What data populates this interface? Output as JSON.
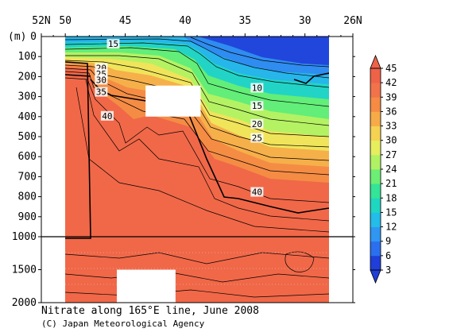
{
  "chart_data": {
    "type": "heatmap",
    "title": "Nitrate along 165°E line, June 2008",
    "credit": "(C) Japan Meteorological Agency",
    "ylabel": "(m)",
    "x_axis": {
      "range": [
        52,
        26
      ],
      "ticks": [
        "52N",
        "50",
        "45",
        "40",
        "35",
        "30",
        "26N"
      ],
      "tick_values": [
        52,
        50,
        45,
        40,
        35,
        30,
        26
      ]
    },
    "y_axis_upper": {
      "range": [
        0,
        1000
      ],
      "ticks": [
        "0",
        "100",
        "200",
        "300",
        "400",
        "500",
        "600",
        "700",
        "800",
        "900",
        "1000"
      ],
      "tick_values": [
        0,
        100,
        200,
        300,
        400,
        500,
        600,
        700,
        800,
        900,
        1000
      ]
    },
    "y_axis_lower": {
      "range": [
        1000,
        2000
      ],
      "ticks": [
        "1500",
        "2000"
      ],
      "tick_values": [
        1500,
        2000
      ]
    },
    "colorbar": {
      "ticks": [
        "3",
        "6",
        "9",
        "12",
        "15",
        "18",
        "21",
        "24",
        "27",
        "30",
        "33",
        "36",
        "39",
        "42",
        "45"
      ],
      "tick_values": [
        3,
        6,
        9,
        12,
        15,
        18,
        21,
        24,
        27,
        30,
        33,
        36,
        39,
        42,
        45
      ],
      "colors": [
        "#1f3fd8",
        "#2b6fee",
        "#2f96f2",
        "#24bce9",
        "#1fd6c0",
        "#34e497",
        "#6cef74",
        "#b0f263",
        "#e6ee5e",
        "#f5d252",
        "#f7ab48",
        "#f58b44",
        "#f2734a",
        "#ee6248"
      ]
    },
    "contour_labels": [
      {
        "text": "15",
        "lat": 46.0,
        "depth": 40
      },
      {
        "text": "20",
        "lat": 47.0,
        "depth": 160
      },
      {
        "text": "25",
        "lat": 47.0,
        "depth": 190
      },
      {
        "text": "30",
        "lat": 47.0,
        "depth": 220
      },
      {
        "text": "35",
        "lat": 47.0,
        "depth": 280
      },
      {
        "text": "40",
        "lat": 46.5,
        "depth": 400
      },
      {
        "text": "10",
        "lat": 34.0,
        "depth": 260
      },
      {
        "text": "15",
        "lat": 34.0,
        "depth": 350
      },
      {
        "text": "20",
        "lat": 34.0,
        "depth": 440
      },
      {
        "text": "25",
        "lat": 34.0,
        "depth": 510
      },
      {
        "text": "40",
        "lat": 34.0,
        "depth": 780
      }
    ],
    "missing_data": [
      {
        "lat": [
          43.3,
          38.7
        ],
        "depth": [
          245,
          400
        ]
      },
      {
        "lat": [
          45.7,
          40.8
        ],
        "depth": [
          1500,
          2000
        ]
      }
    ]
  }
}
